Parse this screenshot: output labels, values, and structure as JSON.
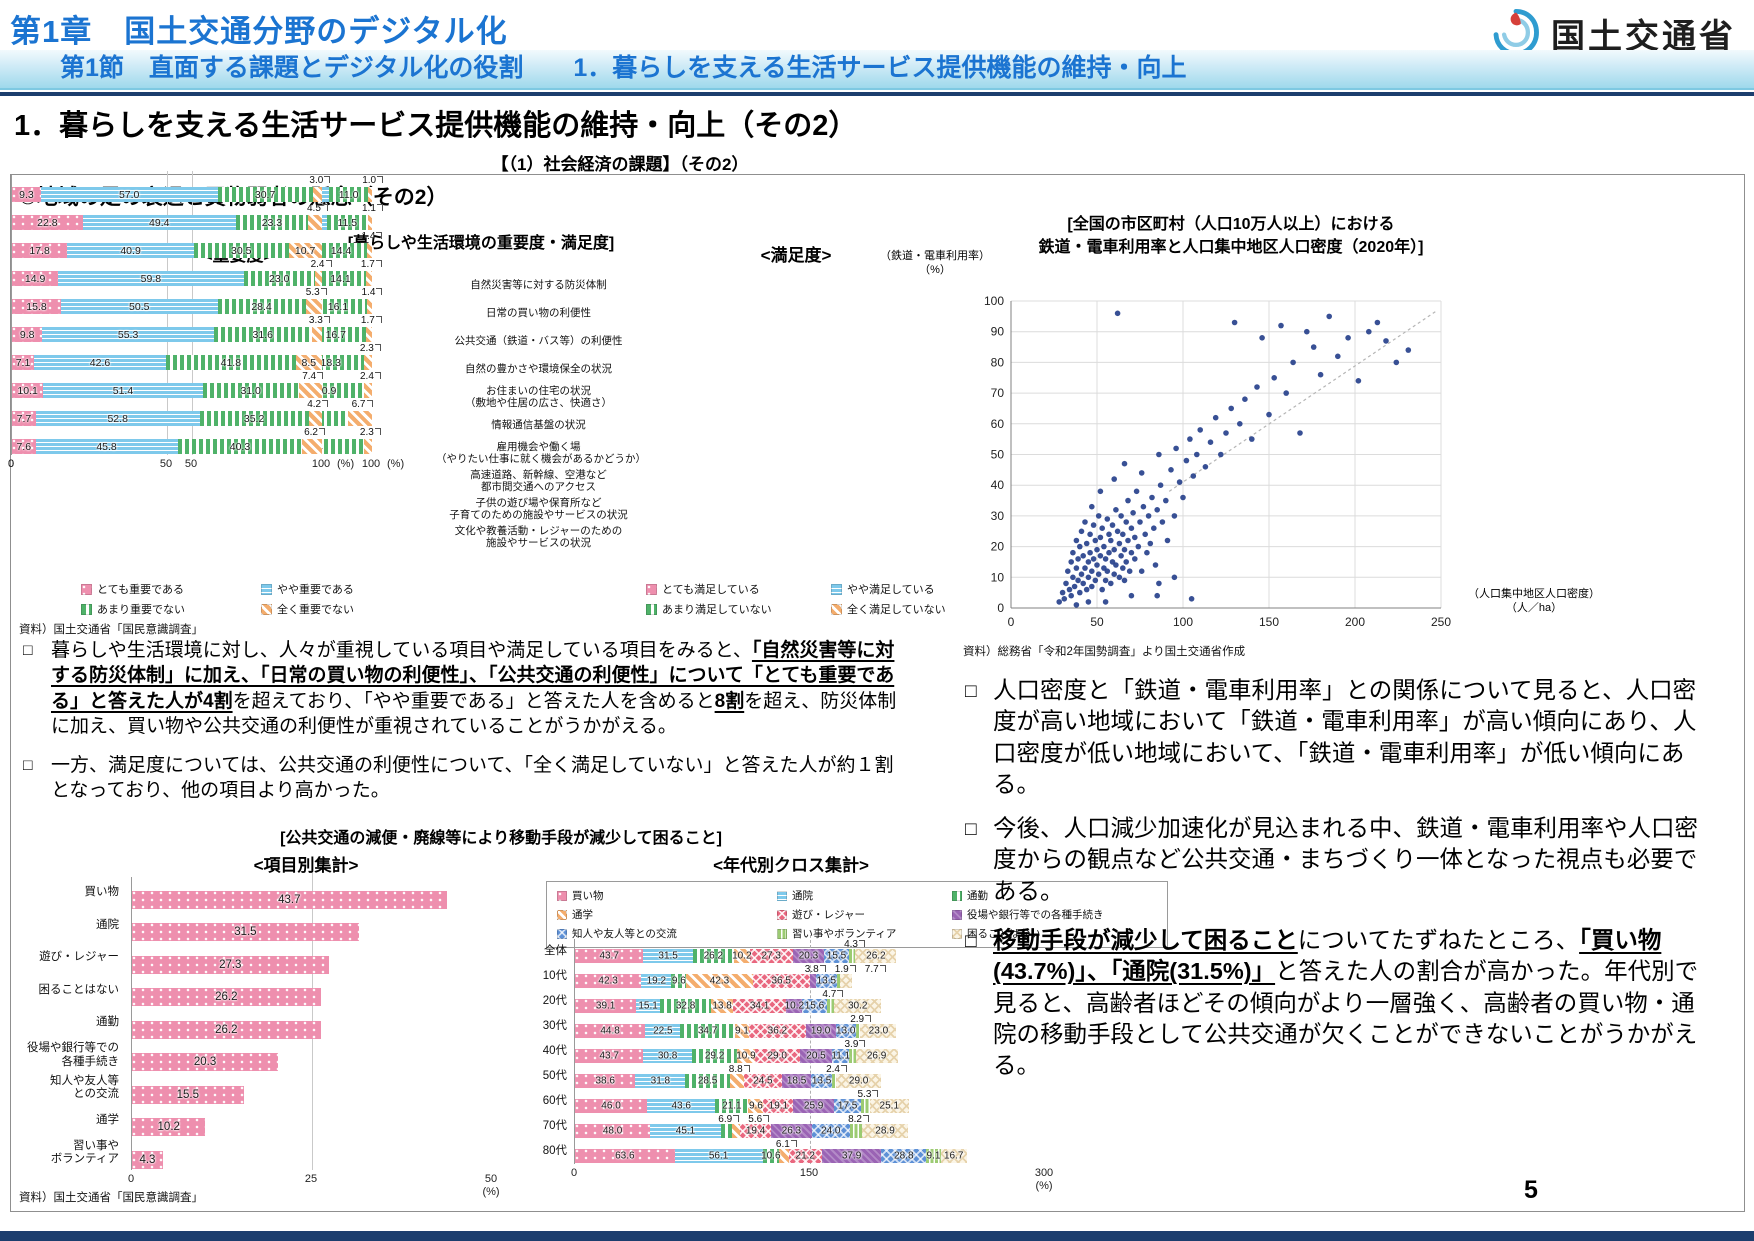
{
  "header": {
    "chapter": "第1章　国土交通分野のデジタル化",
    "section": "第1節　直面する課題とデジタル化の役割　　1．暮らしを支える生活サービス提供機能の維持・向上",
    "logo_text": "国土交通省",
    "page_title": "1．暮らしを支える生活サービス提供機能の維持・向上（その2）",
    "center_label": "【（1）社会経済の課題】（その2）"
  },
  "page_number": "5",
  "colors": {
    "header_blue": "#1b74d1",
    "navy": "#1c3e6e",
    "scatter_point": "#27418c",
    "pink": "#ee8fae",
    "light_blue": "#7ec9eb",
    "green": "#4fb269",
    "orange": "#f4ad6d"
  },
  "panel": {
    "subtitle": "②地域の足の衰退と買物弱者の懸念（その2）",
    "impsat_title": "[暮らしや生活環境の重要度・満足度]",
    "bottom_group_title": "[公共交通の減便・廃線等により移動手段が減少して困ること]",
    "source_impsat": "資料）国土交通省「国民意識調査」",
    "source_item": "資料）国土交通省「国民意識調査」"
  },
  "texts": {
    "bullet": "□",
    "left_paragraphs": [
      {
        "runs": [
          {
            "t": "暮らしや生活環境に対し、人々が重視している項目や満足している項目をみると、"
          },
          {
            "t": "「自然災害等に対する防災体制」に加え、「日常の買い物の利便性」、「公共交通の利便性」について「とても重要である」と答えた人が4割",
            "b": true,
            "u": true
          },
          {
            "t": "を超えており、「やや重要である」と答えた人を含めると"
          },
          {
            "t": "8割",
            "b": true,
            "u": true
          },
          {
            "t": "を超え、防災体制に加え、買い物や公共交通の利便性が重視されていることがうかがえる。"
          }
        ]
      },
      {
        "runs": [
          {
            "t": "一方、満足度については、公共交通の利便性について、「全く満足していない」と答えた人が約１割となっており、他の項目より高かった。"
          }
        ]
      }
    ],
    "right_paragraphs_top": [
      {
        "runs": [
          {
            "t": "人口密度と「鉄道・電車利用率」との関係について見ると、人口密度が高い地域において「鉄道・電車利用率」が高い傾向にあり、人口密度が低い地域において、「鉄道・電車利用率」が低い傾向にある。"
          }
        ]
      },
      {
        "runs": [
          {
            "t": "今後、人口減少加速化が見込まれる中、鉄道・電車利用率や人口密度からの観点など公共交通・まちづくり一体となった視点も必要である。"
          }
        ]
      }
    ],
    "right_paragraphs_bottom": [
      {
        "runs": [
          {
            "t": "移動手段が減少して困ること",
            "b": true,
            "u": true
          },
          {
            "t": "についてたずねたところ、"
          },
          {
            "t": "「買い物(43.7%)」、「通院(31.5%)」",
            "b": true,
            "u": true
          },
          {
            "t": "と答えた人の割合が高かった。年代別で見ると、高齢者ほどその傾向がより一層強く、高齢者の買い物・通院の移動手段として公共交通が欠くことができないことがうかがえる。"
          }
        ]
      }
    ]
  },
  "chart_data": [
    {
      "id": "importance",
      "type": "bar",
      "title": "<重要度>",
      "stacked": true,
      "xlim": [
        0,
        100
      ],
      "ticks": [
        0,
        50,
        100
      ],
      "gridlines": [
        50
      ],
      "unit": "(%)",
      "categories": [
        "自然災害等に対する防災体制",
        "日常の買い物の利便性",
        "公共交通（鉄道・バス等）の利便性",
        "自然の豊かさや環境保全の状況",
        "お住まいの住宅の状況\n（敷地や住居の広さ、快適さ）",
        "情報通信基盤の状況",
        "雇用機会や働く場\n（やりたい仕事に就く機会があるかどうか）",
        "高速道路、新幹線、空港など\n都市間交通へのアクセス",
        "子供の遊び場や保育所など\n子育てのための施設やサービスの状況",
        "文化や教養活動・レジャーのための\n施設やサービスの状況"
      ],
      "series": [
        {
          "name": "とても重要である",
          "values": [
            50.3,
            42.5,
            40.8,
            30.0,
            28.2,
            25.2,
            26.3,
            18.4,
            19.0,
            13.3
          ]
        },
        {
          "name": "やや重要である",
          "values": [
            37.7,
            44.9,
            43.4,
            54.2,
            54.3,
            56.4,
            53.1,
            58.4,
            51.1,
            56.0
          ]
        },
        {
          "name": "あまり重要でない",
          "values": [
            11.0,
            11.5,
            14.4,
            14.1,
            16.1,
            16.7,
            18.3,
            20.9,
            23.1,
            28.4
          ]
        },
        {
          "name": "全く重要でない",
          "values": [
            1.0,
            1.1,
            1.4,
            1.7,
            1.4,
            1.7,
            2.3,
            2.4,
            6.7,
            2.3
          ]
        }
      ]
    },
    {
      "id": "satisfaction",
      "type": "bar",
      "title": "<満足度>",
      "stacked": true,
      "xlim": [
        0,
        100
      ],
      "ticks": [
        0,
        50,
        100
      ],
      "gridlines": [
        50
      ],
      "unit": "(%)",
      "series": [
        {
          "name": "とても満足している",
          "values": [
            9.3,
            22.8,
            17.8,
            14.9,
            15.8,
            9.8,
            7.1,
            10.1,
            7.7,
            7.6
          ]
        },
        {
          "name": "やや満足している",
          "values": [
            57.0,
            49.4,
            40.9,
            59.8,
            50.5,
            55.3,
            42.6,
            51.4,
            52.8,
            45.8
          ]
        },
        {
          "name": "あまり満足していない",
          "values": [
            30.7,
            23.3,
            30.5,
            23.0,
            28.4,
            31.6,
            41.8,
            31.0,
            35.2,
            40.3
          ]
        },
        {
          "name": "全く満足していない",
          "values": [
            3.0,
            4.5,
            10.7,
            2.4,
            5.3,
            3.3,
            8.5,
            7.4,
            4.2,
            6.2
          ]
        }
      ]
    },
    {
      "id": "scatter",
      "type": "scatter",
      "title": "[全国の市区町村（人口10万人以上）における鉄道・電車利用率と人口集中地区人口密度（2020年）]",
      "title_lines": [
        "[全国の市区町村（人口10万人以上）における",
        "鉄道・電車利用率と人口集中地区人口密度（2020年）]"
      ],
      "ylabel_lines": [
        "（鉄道・電車利用率）",
        "（%）"
      ],
      "xlabel_lines": [
        "（人口集中地区人口密度）",
        "（人／ha）"
      ],
      "xlim": [
        0,
        250
      ],
      "ylim": [
        0,
        100
      ],
      "xticks": [
        0,
        50,
        100,
        150,
        200,
        250
      ],
      "yticks": [
        0,
        10,
        20,
        30,
        40,
        50,
        60,
        70,
        80,
        90,
        100
      ],
      "point_color": "#27418c",
      "trendline": {
        "from": [
          92,
          38
        ],
        "to": [
          248,
          97
        ],
        "style": "dashed"
      },
      "source": "資料）総務省「令和2年国勢調査」より国土交通省作成",
      "points": [
        [
          28,
          2
        ],
        [
          30,
          5
        ],
        [
          31,
          3
        ],
        [
          32,
          8
        ],
        [
          33,
          12
        ],
        [
          34,
          6
        ],
        [
          35,
          15
        ],
        [
          35,
          4
        ],
        [
          36,
          10
        ],
        [
          36,
          18
        ],
        [
          37,
          7
        ],
        [
          38,
          13
        ],
        [
          38,
          22
        ],
        [
          39,
          9
        ],
        [
          39,
          16
        ],
        [
          40,
          5
        ],
        [
          40,
          20
        ],
        [
          41,
          11
        ],
        [
          41,
          25
        ],
        [
          42,
          8
        ],
        [
          42,
          17
        ],
        [
          43,
          13
        ],
        [
          43,
          28
        ],
        [
          44,
          6
        ],
        [
          44,
          21
        ],
        [
          45,
          15
        ],
        [
          45,
          10
        ],
        [
          46,
          24
        ],
        [
          46,
          18
        ],
        [
          47,
          7
        ],
        [
          47,
          12
        ],
        [
          48,
          27
        ],
        [
          48,
          16
        ],
        [
          49,
          22
        ],
        [
          49,
          9
        ],
        [
          50,
          19
        ],
        [
          50,
          14
        ],
        [
          51,
          30
        ],
        [
          51,
          11
        ],
        [
          52,
          23
        ],
        [
          52,
          17
        ],
        [
          53,
          6
        ],
        [
          53,
          26
        ],
        [
          54,
          13
        ],
        [
          54,
          20
        ],
        [
          55,
          9
        ],
        [
          55,
          16
        ],
        [
          56,
          29
        ],
        [
          56,
          12
        ],
        [
          57,
          24
        ],
        [
          57,
          18
        ],
        [
          58,
          8
        ],
        [
          58,
          22
        ],
        [
          59,
          15
        ],
        [
          59,
          27
        ],
        [
          60,
          11
        ],
        [
          60,
          19
        ],
        [
          61,
          32
        ],
        [
          61,
          14
        ],
        [
          62,
          25
        ],
        [
          62,
          96
        ],
        [
          63,
          10
        ],
        [
          63,
          21
        ],
        [
          64,
          17
        ],
        [
          64,
          30
        ],
        [
          65,
          13
        ],
        [
          65,
          24
        ],
        [
          66,
          19
        ],
        [
          66,
          9
        ],
        [
          67,
          28
        ],
        [
          67,
          15
        ],
        [
          68,
          22
        ],
        [
          68,
          35
        ],
        [
          69,
          12
        ],
        [
          70,
          26
        ],
        [
          70,
          18
        ],
        [
          71,
          31
        ],
        [
          72,
          16
        ],
        [
          72,
          23
        ],
        [
          73,
          38
        ],
        [
          74,
          20
        ],
        [
          75,
          28
        ],
        [
          76,
          12
        ],
        [
          77,
          33
        ],
        [
          78,
          24
        ],
        [
          79,
          18
        ],
        [
          80,
          30
        ],
        [
          81,
          21
        ],
        [
          82,
          36
        ],
        [
          83,
          26
        ],
        [
          84,
          14
        ],
        [
          85,
          32
        ],
        [
          86,
          8
        ],
        [
          87,
          40
        ],
        [
          88,
          28
        ],
        [
          90,
          35
        ],
        [
          91,
          22
        ],
        [
          93,
          45
        ],
        [
          95,
          30
        ],
        [
          96,
          52
        ],
        [
          98,
          41
        ],
        [
          100,
          36
        ],
        [
          102,
          48
        ],
        [
          104,
          55
        ],
        [
          106,
          43
        ],
        [
          108,
          50
        ],
        [
          110,
          58
        ],
        [
          113,
          46
        ],
        [
          116,
          54
        ],
        [
          119,
          62
        ],
        [
          122,
          50
        ],
        [
          125,
          57
        ],
        [
          128,
          65
        ],
        [
          130,
          93
        ],
        [
          133,
          60
        ],
        [
          136,
          68
        ],
        [
          140,
          55
        ],
        [
          143,
          72
        ],
        [
          146,
          88
        ],
        [
          150,
          63
        ],
        [
          153,
          75
        ],
        [
          157,
          92
        ],
        [
          160,
          70
        ],
        [
          164,
          80
        ],
        [
          168,
          57
        ],
        [
          172,
          90
        ],
        [
          176,
          85
        ],
        [
          180,
          76
        ],
        [
          185,
          95
        ],
        [
          190,
          82
        ],
        [
          196,
          88
        ],
        [
          202,
          74
        ],
        [
          208,
          90
        ],
        [
          213,
          93
        ],
        [
          218,
          87
        ],
        [
          224,
          80
        ],
        [
          231,
          84
        ],
        [
          55,
          2
        ],
        [
          45,
          2
        ],
        [
          38,
          1
        ],
        [
          70,
          4
        ],
        [
          85,
          4
        ],
        [
          95,
          10
        ],
        [
          105,
          3
        ],
        [
          60,
          42
        ],
        [
          52,
          38
        ],
        [
          47,
          33
        ],
        [
          66,
          47
        ],
        [
          76,
          44
        ],
        [
          86,
          50
        ]
      ]
    },
    {
      "id": "item_totals",
      "type": "bar",
      "title": "<項目別集計>",
      "xlim": [
        0,
        50
      ],
      "ticks": [
        0,
        25,
        50
      ],
      "gridlines": [
        25
      ],
      "unit": "(%)",
      "categories": [
        "買い物",
        "通院",
        "遊び・レジャー",
        "困ることはない",
        "通勤",
        "役場や銀行等での\n各種手続き",
        "知人や友人等\nとの交流",
        "通学",
        "習い事や\nボランティア"
      ],
      "values": [
        43.7,
        31.5,
        27.3,
        26.2,
        26.2,
        20.3,
        15.5,
        10.2,
        4.3
      ]
    },
    {
      "id": "age_cross",
      "type": "bar",
      "title": "<年代別クロス集計>",
      "stacked": true,
      "xlim": [
        0,
        300
      ],
      "ticks": [
        0,
        150,
        300
      ],
      "gridlines": [
        150
      ],
      "griddash": true,
      "unit": "(%)",
      "categories": [
        "全体",
        "10代",
        "20代",
        "30代",
        "40代",
        "50代",
        "60代",
        "70代",
        "80代"
      ],
      "series": [
        {
          "name": "買い物",
          "values": [
            43.7,
            42.3,
            39.1,
            44.8,
            43.7,
            38.6,
            46.0,
            48.0,
            63.6
          ]
        },
        {
          "name": "通院",
          "values": [
            31.5,
            19.2,
            15.1,
            22.5,
            30.8,
            31.8,
            43.6,
            45.1,
            56.1
          ]
        },
        {
          "name": "通勤",
          "values": [
            26.2,
            9.6,
            32.8,
            34.7,
            29.2,
            28.5,
            21.1,
            6.9,
            10.6
          ]
        },
        {
          "name": "通学",
          "values": [
            10.2,
            42.3,
            13.8,
            9.1,
            10.9,
            8.8,
            9.6,
            5.6,
            6.1
          ]
        },
        {
          "name": "遊び・レジャー",
          "values": [
            27.3,
            36.5,
            34.1,
            36.2,
            29.0,
            24.5,
            19.1,
            19.4,
            21.2
          ]
        },
        {
          "name": "役場や銀行等での各種手続き",
          "values": [
            20.3,
            3.8,
            10.2,
            19.0,
            20.5,
            18.5,
            25.9,
            26.3,
            37.9
          ]
        },
        {
          "name": "知人や友人等との交流",
          "values": [
            15.5,
            13.5,
            15.6,
            13.0,
            11.1,
            13.5,
            17.5,
            24.0,
            28.8
          ]
        },
        {
          "name": "習い事やボランティア",
          "values": [
            4.3,
            1.9,
            4.7,
            2.9,
            3.9,
            2.4,
            5.3,
            8.2,
            9.1
          ]
        },
        {
          "name": "困ることはない",
          "values": [
            26.2,
            7.7,
            30.2,
            23.0,
            26.9,
            29.0,
            25.1,
            28.9,
            16.7
          ]
        }
      ]
    }
  ]
}
